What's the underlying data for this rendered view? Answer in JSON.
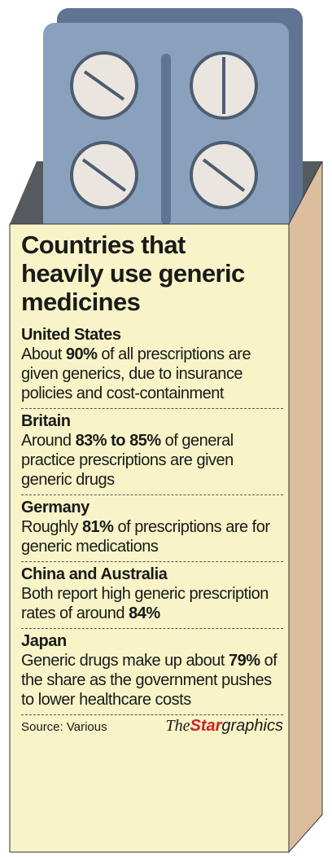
{
  "title": "Countries that heavily use generic medicines",
  "items": [
    {
      "country": "United States",
      "parts": [
        "About ",
        "90%",
        " of all prescriptions are given generics, due to insurance policies and cost-containment"
      ]
    },
    {
      "country": "Britain",
      "parts": [
        "Around ",
        "83% to 85%",
        " of general practice prescriptions are given generic drugs"
      ]
    },
    {
      "country": "Germany",
      "parts": [
        "Roughly ",
        "81%",
        " of prescriptions are for generic medications"
      ]
    },
    {
      "country": "China and Australia",
      "parts": [
        "Both report high generic prescription rates of around ",
        "84%"
      ]
    },
    {
      "country": "Japan",
      "parts": [
        "Generic drugs make up about ",
        "79%",
        " of the share as the government pushes to lower healthcare costs"
      ]
    }
  ],
  "source": "Source: Various",
  "logo": [
    "The",
    "Star",
    "graphics"
  ]
}
